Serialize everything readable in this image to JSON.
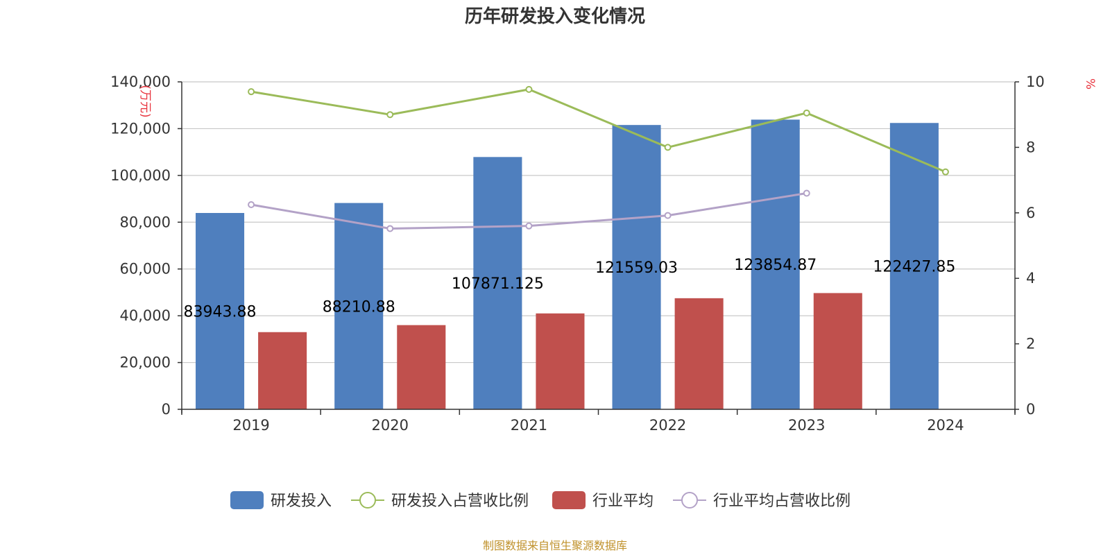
{
  "chart_data": {
    "type": "bar",
    "title": "历年研发投入变化情况",
    "categories": [
      "2019",
      "2020",
      "2021",
      "2022",
      "2023",
      "2024"
    ],
    "y_left": {
      "unit_label": "(万元)",
      "ylim": [
        0,
        140000
      ],
      "ticks": [
        0,
        20000,
        40000,
        60000,
        80000,
        100000,
        120000,
        140000
      ]
    },
    "y_right": {
      "unit_label": "%",
      "ylim": [
        0,
        10
      ],
      "ticks": [
        0,
        2,
        4,
        6,
        8,
        10
      ]
    },
    "grid": true,
    "legend_position": "bottom-center",
    "series": [
      {
        "name": "研发投入",
        "type": "bar",
        "axis": "left",
        "color": "#4f7fbe",
        "values": [
          83943.88,
          88210.88,
          107871.125,
          121559.03,
          123854.87,
          122427.85
        ],
        "labels": [
          "83943.88",
          "88210.88",
          "107871.125",
          "121559.03",
          "123854.87",
          "122427.85"
        ]
      },
      {
        "name": "研发投入占营收比例",
        "type": "line",
        "axis": "right",
        "color": "#9bbb59",
        "values": [
          9.7,
          9.0,
          9.77,
          8.0,
          9.05,
          7.25
        ]
      },
      {
        "name": "行业平均",
        "type": "bar",
        "axis": "left",
        "color": "#c0504d",
        "values": [
          33000,
          36000,
          41000,
          47500,
          49700,
          null
        ]
      },
      {
        "name": "行业平均占营收比例",
        "type": "line",
        "axis": "right",
        "color": "#b3a2c7",
        "values": [
          6.25,
          5.52,
          5.6,
          5.92,
          6.6,
          null
        ]
      }
    ]
  },
  "footer": {
    "source": "制图数据来自恒生聚源数据库"
  }
}
